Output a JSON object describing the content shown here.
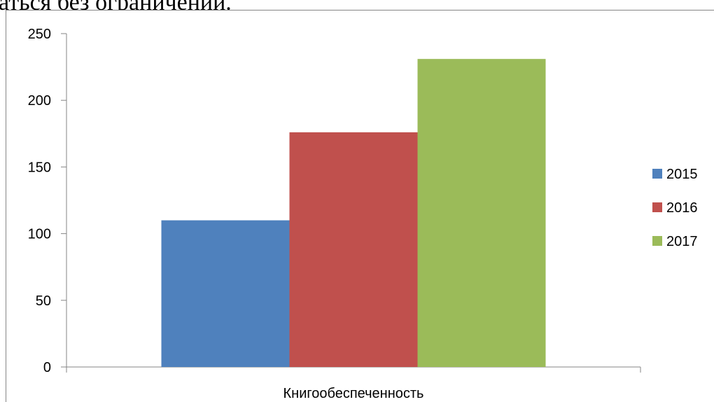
{
  "document": {
    "partial_text": "аться без ограничений."
  },
  "chart_data": {
    "type": "bar",
    "title": "",
    "xlabel": "",
    "ylabel": "",
    "categories": [
      "Книгообеспеченность"
    ],
    "series": [
      {
        "name": "2015",
        "values": [
          110
        ],
        "color": "#4F81BD"
      },
      {
        "name": "2016",
        "values": [
          176
        ],
        "color": "#C0504D"
      },
      {
        "name": "2017",
        "values": [
          231
        ],
        "color": "#9BBB59"
      }
    ],
    "ylim": [
      0,
      250
    ],
    "yticks": [
      0,
      50,
      100,
      150,
      200,
      250
    ],
    "grid": false,
    "legend": "right"
  }
}
